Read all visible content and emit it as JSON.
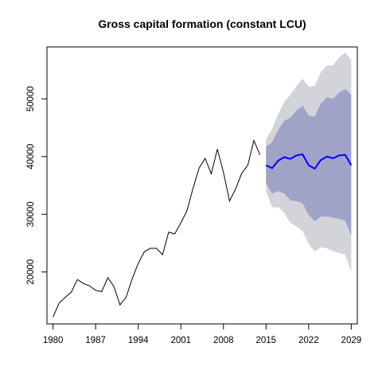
{
  "chart_data": {
    "type": "line",
    "title": "Gross capital formation (constant LCU)",
    "xlabel": "",
    "ylabel": "",
    "xlim": [
      1979,
      2030
    ],
    "ylim": [
      11000,
      59000
    ],
    "x_ticks": [
      1980,
      1987,
      1994,
      2001,
      2008,
      2015,
      2022,
      2029
    ],
    "y_ticks": [
      20000,
      30000,
      40000,
      50000
    ],
    "grid": false,
    "legend": "none",
    "colors": {
      "history": "#000000",
      "forecast": "#0000ff",
      "band95": "#d3d3da",
      "band80": "#a0a3c8"
    },
    "history": {
      "x": [
        1980,
        1981,
        1982,
        1983,
        1984,
        1985,
        1986,
        1987,
        1988,
        1989,
        1990,
        1991,
        1992,
        1993,
        1994,
        1995,
        1996,
        1997,
        1998,
        1999,
        2000,
        2001,
        2002,
        2003,
        2004,
        2005,
        2006,
        2007,
        2008,
        2009,
        2010,
        2011,
        2012,
        2013,
        2014
      ],
      "y": [
        12200,
        14600,
        15600,
        16500,
        18700,
        18000,
        17600,
        16800,
        16600,
        19000,
        17500,
        14300,
        15600,
        18800,
        21500,
        23500,
        24100,
        24100,
        23000,
        26900,
        26600,
        28500,
        30600,
        34500,
        38000,
        39700,
        37000,
        41300,
        37300,
        32300,
        34400,
        37100,
        38500,
        42800,
        40300
      ]
    },
    "forecast": {
      "x": [
        2015,
        2016,
        2017,
        2018,
        2019,
        2020,
        2021,
        2022,
        2023,
        2024,
        2025,
        2026,
        2027,
        2028,
        2029
      ],
      "mean": [
        38500,
        38000,
        39300,
        39900,
        39600,
        40200,
        40400,
        38500,
        37900,
        39400,
        40000,
        39700,
        40200,
        40300,
        38500
      ],
      "lo80": [
        35300,
        33600,
        34000,
        33600,
        32400,
        32300,
        31900,
        29900,
        28800,
        29600,
        29600,
        29400,
        29200,
        28900,
        26300
      ],
      "hi80": [
        41700,
        42500,
        44600,
        46200,
        46700,
        48000,
        48800,
        47100,
        46900,
        49200,
        50300,
        50000,
        51100,
        51700,
        50700
      ],
      "lo95": [
        34000,
        31200,
        31200,
        30300,
        28500,
        27900,
        27100,
        24900,
        23500,
        24300,
        24100,
        23600,
        23300,
        23000,
        20100
      ],
      "hi95": [
        43000,
        44800,
        47400,
        49500,
        50700,
        52200,
        53500,
        52100,
        52200,
        54600,
        55800,
        55800,
        57200,
        58000,
        56800
      ]
    }
  }
}
